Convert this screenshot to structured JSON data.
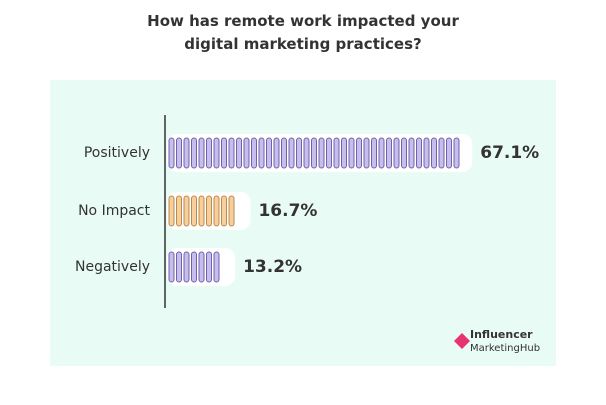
{
  "chart_data": {
    "type": "bar",
    "orientation": "horizontal",
    "title": "How has remote work impacted your digital marketing practices?",
    "categories": [
      "Positively",
      "No Impact",
      "Negatively"
    ],
    "values": [
      67.1,
      16.7,
      13.2
    ],
    "value_labels": [
      "67.1%",
      "16.7%",
      "13.2%"
    ],
    "colors": [
      "#c9bdf0",
      "#f7cf9c",
      "#c9bdf0"
    ],
    "stroke_colors": [
      "#6f63a8",
      "#b98a4c",
      "#6f63a8"
    ]
  },
  "logo": {
    "line1": "Influencer",
    "line2": "MarketingHub"
  }
}
